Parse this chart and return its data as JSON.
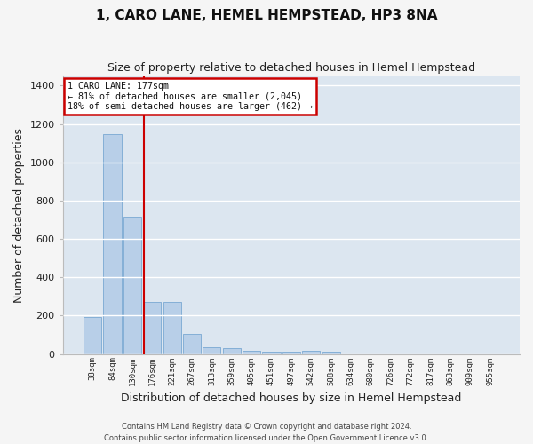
{
  "title": "1, CARO LANE, HEMEL HEMPSTEAD, HP3 8NA",
  "subtitle": "Size of property relative to detached houses in Hemel Hempstead",
  "xlabel": "Distribution of detached houses by size in Hemel Hempstead",
  "ylabel": "Number of detached properties",
  "footer1": "Contains HM Land Registry data © Crown copyright and database right 2024.",
  "footer2": "Contains public sector information licensed under the Open Government Licence v3.0.",
  "bar_color": "#b8cfe8",
  "bar_edge_color": "#7aa8d2",
  "background_color": "#dce6f0",
  "grid_color": "#ffffff",
  "fig_background": "#f5f5f5",
  "ylim": [
    0,
    1450
  ],
  "yticks": [
    0,
    200,
    400,
    600,
    800,
    1000,
    1200,
    1400
  ],
  "bin_labels": [
    "38sqm",
    "84sqm",
    "130sqm",
    "176sqm",
    "221sqm",
    "267sqm",
    "313sqm",
    "359sqm",
    "405sqm",
    "451sqm",
    "497sqm",
    "542sqm",
    "588sqm",
    "634sqm",
    "680sqm",
    "726sqm",
    "772sqm",
    "817sqm",
    "863sqm",
    "909sqm",
    "955sqm"
  ],
  "bin_values": [
    195,
    1145,
    715,
    270,
    270,
    105,
    35,
    30,
    15,
    12,
    12,
    18,
    12,
    0,
    0,
    0,
    0,
    0,
    0,
    0,
    0
  ],
  "red_line_x": 2.57,
  "annotation_text_line1": "1 CARO LANE: 177sqm",
  "annotation_text_line2": "← 81% of detached houses are smaller (2,045)",
  "annotation_text_line3": "18% of semi-detached houses are larger (462) →",
  "annotation_box_color": "#ffffff",
  "annotation_border_color": "#cc0000",
  "red_line_color": "#cc0000",
  "title_fontsize": 11,
  "subtitle_fontsize": 9,
  "ylabel_fontsize": 9,
  "xlabel_fontsize": 9
}
